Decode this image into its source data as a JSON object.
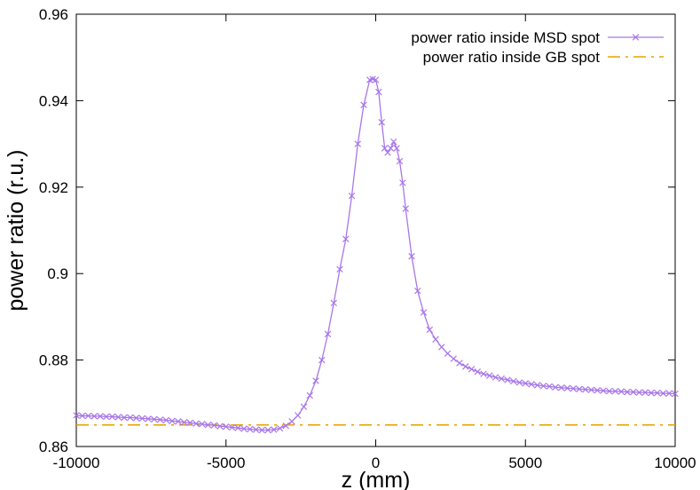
{
  "chart_data": {
    "type": "line",
    "title": "",
    "xlabel": "z (mm)",
    "ylabel": "power ratio (r.u.)",
    "xlim": [
      -10000,
      10000
    ],
    "ylim": [
      0.86,
      0.96
    ],
    "xticks": [
      -10000,
      -5000,
      0,
      5000,
      10000
    ],
    "xtick_labels": [
      "-10000",
      "-5000",
      "0",
      "5000",
      "10000"
    ],
    "yticks": [
      0.86,
      0.88,
      0.9,
      0.92,
      0.94,
      0.96
    ],
    "ytick_labels": [
      "0.86",
      "0.88",
      "0.9",
      "0.92",
      "0.94",
      "0.96"
    ],
    "grid": false,
    "legend_position": "top-right",
    "series": [
      {
        "name": "power ratio inside MSD spot",
        "color": "#a877e8",
        "style": "line-with-x-markers",
        "x": [
          -10000,
          -9800,
          -9600,
          -9400,
          -9200,
          -9000,
          -8800,
          -8600,
          -8400,
          -8200,
          -8000,
          -7800,
          -7600,
          -7400,
          -7200,
          -7000,
          -6800,
          -6600,
          -6400,
          -6200,
          -6000,
          -5800,
          -5600,
          -5400,
          -5200,
          -5000,
          -4800,
          -4600,
          -4400,
          -4200,
          -4000,
          -3800,
          -3600,
          -3400,
          -3200,
          -3000,
          -2800,
          -2600,
          -2400,
          -2200,
          -2000,
          -1800,
          -1600,
          -1400,
          -1200,
          -1000,
          -800,
          -600,
          -400,
          -200,
          -100,
          0,
          100,
          200,
          300,
          400,
          500,
          600,
          700,
          800,
          900,
          1000,
          1200,
          1400,
          1600,
          1800,
          2000,
          2200,
          2400,
          2600,
          2800,
          3000,
          3200,
          3400,
          3600,
          3800,
          4000,
          4200,
          4400,
          4600,
          4800,
          5000,
          5200,
          5400,
          5600,
          5800,
          6000,
          6200,
          6400,
          6600,
          6800,
          7000,
          7200,
          7400,
          7600,
          7800,
          8000,
          8200,
          8400,
          8600,
          8800,
          9000,
          9200,
          9400,
          9600,
          9800,
          10000
        ],
        "y": [
          0.8672,
          0.8671,
          0.8671,
          0.867,
          0.867,
          0.8669,
          0.8669,
          0.8668,
          0.8667,
          0.8667,
          0.8666,
          0.8665,
          0.8664,
          0.8663,
          0.8662,
          0.8661,
          0.8659,
          0.8658,
          0.8656,
          0.8655,
          0.8653,
          0.8652,
          0.865,
          0.8649,
          0.8647,
          0.8646,
          0.8644,
          0.8643,
          0.8641,
          0.864,
          0.8639,
          0.8638,
          0.8638,
          0.8639,
          0.8642,
          0.8648,
          0.8658,
          0.8672,
          0.8692,
          0.8718,
          0.8752,
          0.88,
          0.886,
          0.8932,
          0.901,
          0.908,
          0.918,
          0.93,
          0.939,
          0.9448,
          0.945,
          0.9448,
          0.942,
          0.935,
          0.929,
          0.928,
          0.929,
          0.9305,
          0.929,
          0.926,
          0.921,
          0.915,
          0.904,
          0.896,
          0.891,
          0.887,
          0.8848,
          0.883,
          0.8815,
          0.8803,
          0.8793,
          0.8785,
          0.8779,
          0.8773,
          0.8768,
          0.8764,
          0.876,
          0.8757,
          0.8754,
          0.8751,
          0.8748,
          0.8746,
          0.8744,
          0.8742,
          0.874,
          0.8739,
          0.8737,
          0.8736,
          0.8735,
          0.8734,
          0.8733,
          0.8732,
          0.8731,
          0.873,
          0.8729,
          0.8728,
          0.8728,
          0.8727,
          0.8726,
          0.8726,
          0.8725,
          0.8725,
          0.8724,
          0.8724,
          0.8723,
          0.8723,
          0.8722
        ]
      },
      {
        "name": "power ratio inside GB spot",
        "color": "#e8a200",
        "style": "dash-dot",
        "x": [
          -10000,
          10000
        ],
        "y": [
          0.865,
          0.865
        ]
      }
    ]
  }
}
